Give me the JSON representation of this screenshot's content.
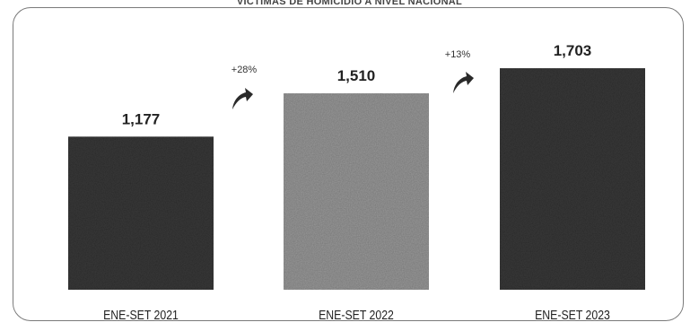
{
  "chart_data": {
    "type": "bar",
    "title": "VICTIMAS DE HOMICIDIO A NIVEL NACIONAL",
    "categories": [
      "ENE-SET 2021",
      "ENE-SET 2022",
      "ENE-SET 2023"
    ],
    "values": [
      1177,
      1510,
      1703
    ],
    "value_labels": [
      "1,177",
      "1,510",
      "1,703"
    ],
    "annotations": [
      {
        "text": "+28%",
        "between": [
          "ENE-SET 2021",
          "ENE-SET 2022"
        ],
        "icon": "curved-up-arrow-icon"
      },
      {
        "text": "+13%",
        "between": [
          "ENE-SET 2022",
          "ENE-SET 2023"
        ],
        "icon": "curved-up-arrow-icon"
      }
    ],
    "ylim": [
      0,
      2000
    ],
    "grid": false,
    "legend": "none",
    "colors": [
      "#3a3a3a",
      "#9a9a9a",
      "#3a3a3a"
    ]
  }
}
